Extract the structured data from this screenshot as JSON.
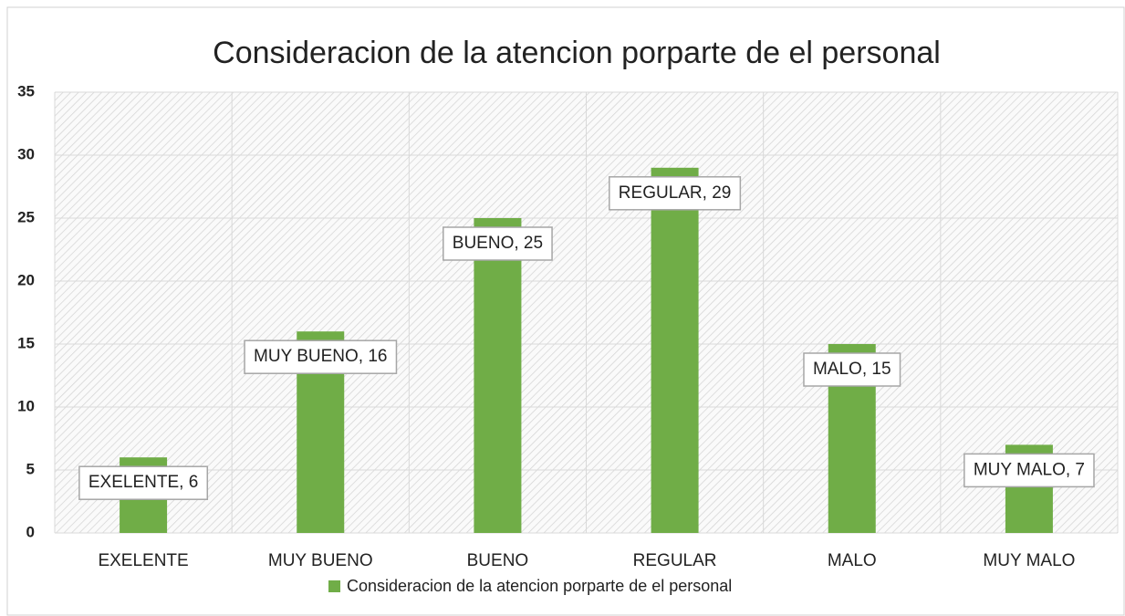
{
  "chart_data": {
    "type": "bar",
    "title": "Consideracion de la atencion porparte de el personal",
    "categories": [
      "EXELENTE",
      "MUY BUENO",
      "BUENO",
      "REGULAR",
      "MALO",
      "MUY MALO"
    ],
    "series": [
      {
        "name": "Consideracion de la atencion porparte de el personal",
        "color": "#70ad47",
        "values": [
          6,
          16,
          25,
          29,
          15,
          7
        ],
        "value_labels": [
          "EXELENTE, 6",
          "MUY BUENO, 16",
          "BUENO, 25",
          "REGULAR, 29",
          "MALO, 15",
          "MUY MALO, 7"
        ]
      }
    ],
    "ylim": [
      0,
      35
    ],
    "yticks": [
      0,
      5,
      10,
      15,
      20,
      25,
      30,
      35
    ],
    "grid": true,
    "legend": "bottom"
  }
}
